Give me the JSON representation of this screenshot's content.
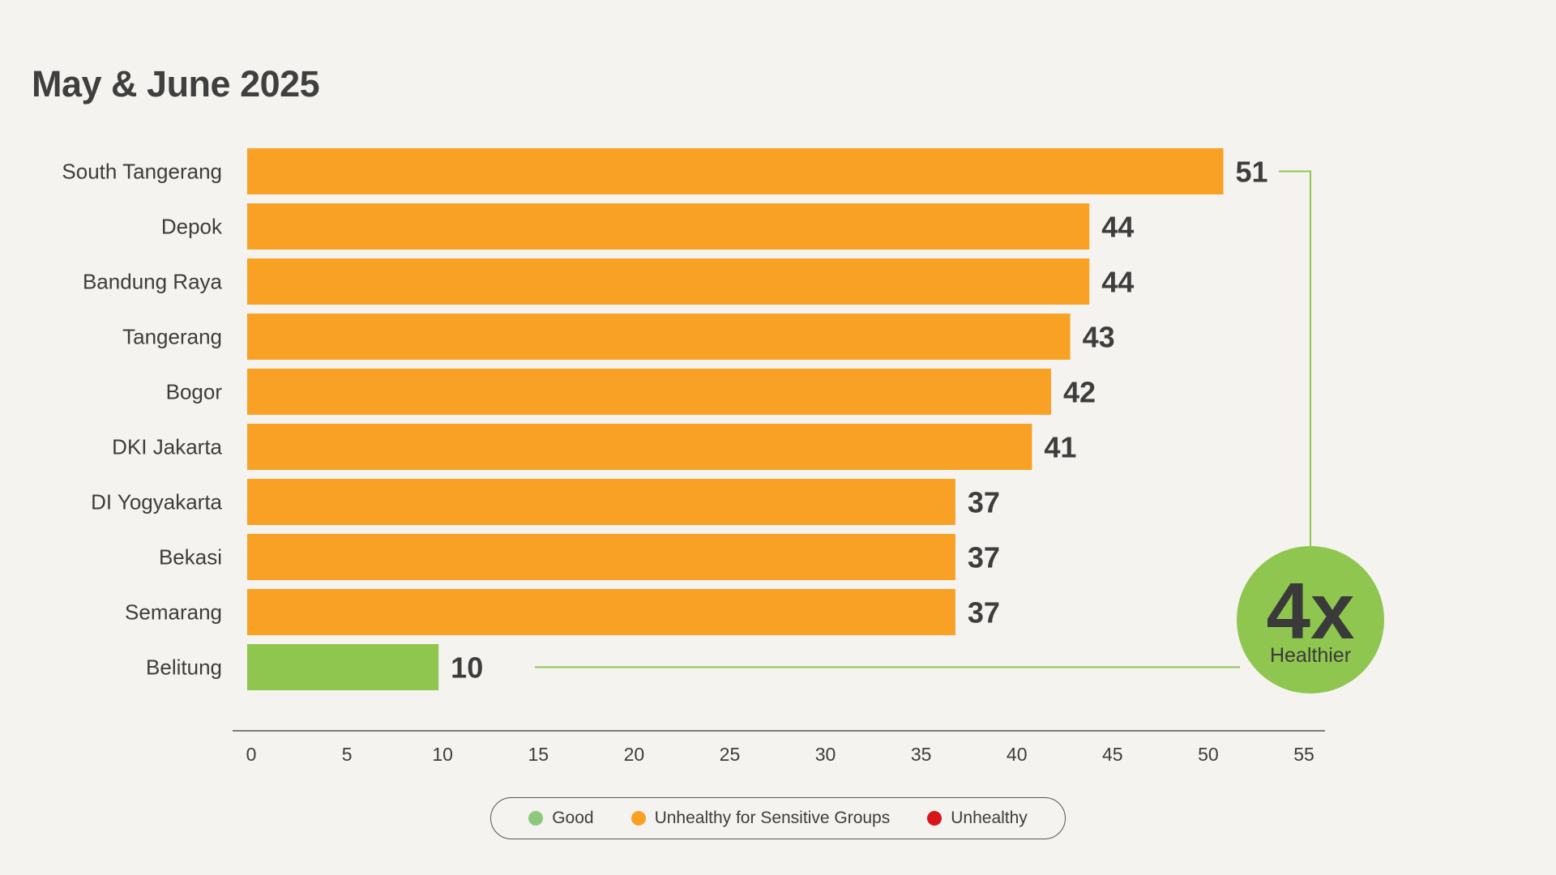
{
  "chart_data": {
    "type": "bar",
    "orientation": "horizontal",
    "title": "May & June 2025",
    "categories": [
      "South Tangerang",
      "Depok",
      "Bandung Raya",
      "Tangerang",
      "Bogor",
      "DKI Jakarta",
      "DI Yogyakarta",
      "Bekasi",
      "Semarang",
      "Belitung"
    ],
    "values": [
      51,
      44,
      44,
      43,
      42,
      41,
      37,
      37,
      37,
      10
    ],
    "value_labels": [
      "51",
      "44",
      "44",
      "43",
      "42",
      "41",
      "37",
      "37",
      "37",
      "10"
    ],
    "bar_status": [
      "Unhealthy for Sensitive Groups",
      "Unhealthy for Sensitive Groups",
      "Unhealthy for Sensitive Groups",
      "Unhealthy for Sensitive Groups",
      "Unhealthy for Sensitive Groups",
      "Unhealthy for Sensitive Groups",
      "Unhealthy for Sensitive Groups",
      "Unhealthy for Sensitive Groups",
      "Unhealthy for Sensitive Groups",
      "Good"
    ],
    "xlim": [
      0,
      55
    ],
    "xticks": [
      0,
      5,
      10,
      15,
      20,
      25,
      30,
      35,
      40,
      45,
      50,
      55
    ],
    "xlabel": "",
    "ylabel": "",
    "grid": false,
    "legend": {
      "placement": "bottom-center",
      "entries": [
        {
          "label": "Good",
          "color": "#8cc97f"
        },
        {
          "label": "Unhealthy for Sensitive Groups",
          "color": "#f9a124"
        },
        {
          "label": "Unhealthy",
          "color": "#d9141b"
        }
      ]
    },
    "annotation": {
      "big_text": "4x",
      "small_text": "Healthier",
      "from_category": "Belitung",
      "to_category": "South Tangerang"
    }
  },
  "colors": {
    "background": "#f5f3ef",
    "orange": "#f9a124",
    "green": "#8fc650",
    "axis": "#555555",
    "text": "#3d3d3d"
  }
}
